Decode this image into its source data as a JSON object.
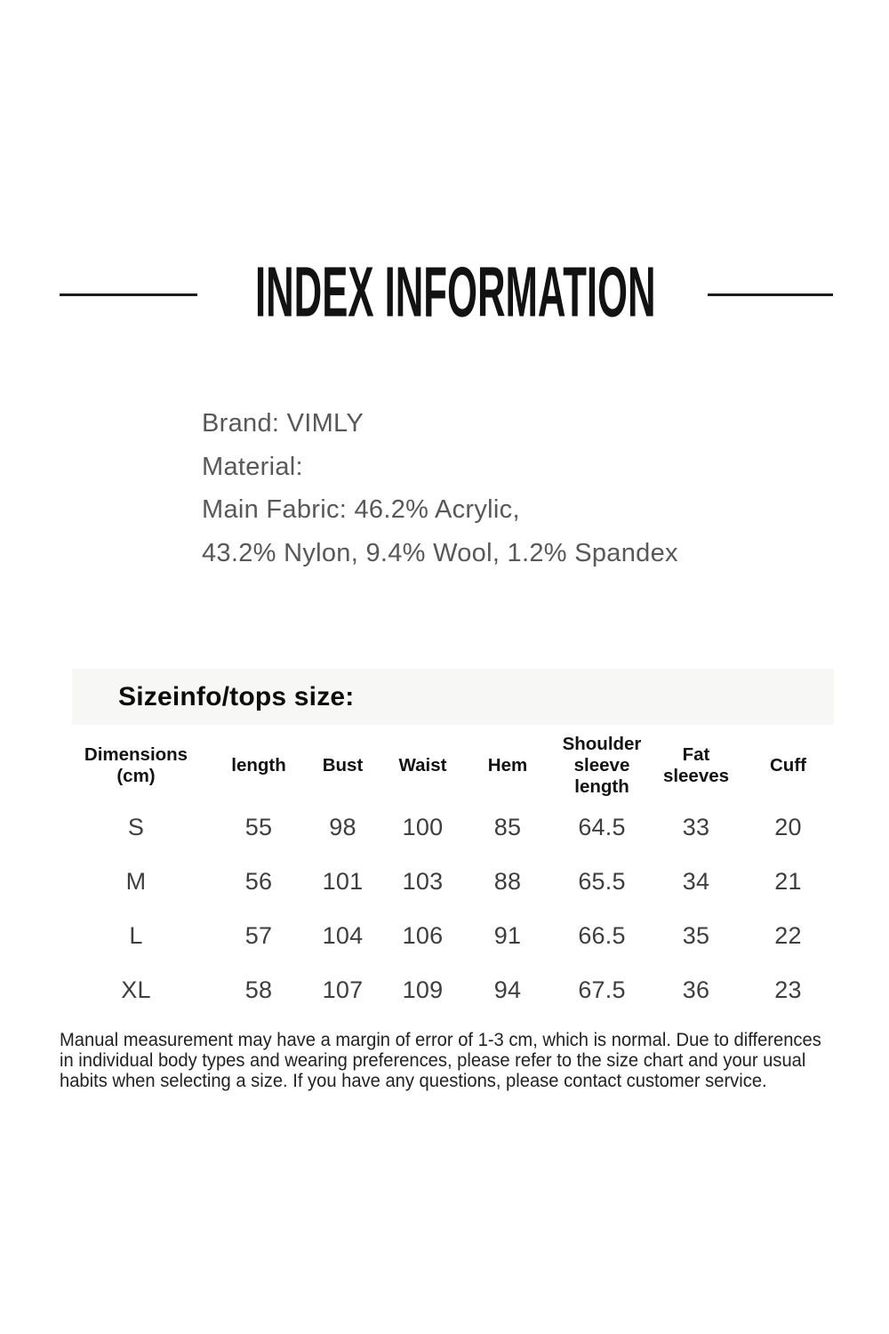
{
  "page": {
    "title": "INDEX INFORMATION"
  },
  "product": {
    "brand_line": "Brand: VIMLY",
    "material_label": "Material:",
    "material_line_1": "Main Fabric: 46.2% Acrylic,",
    "material_line_2": "43.2% Nylon, 9.4% Wool, 1.2% Spandex"
  },
  "size_section": {
    "heading": "Sizeinfo/tops size:",
    "table": {
      "headers": [
        [
          "Dimensions",
          "(cm)"
        ],
        [
          "length"
        ],
        [
          "Bust"
        ],
        [
          "Waist"
        ],
        [
          "Hem"
        ],
        [
          "Shoulder",
          "sleeve",
          "length"
        ],
        [
          "Fat",
          "sleeves"
        ],
        [
          "Cuff"
        ]
      ],
      "rows": [
        [
          "S",
          "55",
          "98",
          "100",
          "85",
          "64.5",
          "33",
          "20"
        ],
        [
          "M",
          "56",
          "101",
          "103",
          "88",
          "65.5",
          "34",
          "21"
        ],
        [
          "L",
          "57",
          "104",
          "106",
          "91",
          "66.5",
          "35",
          "22"
        ],
        [
          "XL",
          "58",
          "107",
          "109",
          "94",
          "67.5",
          "36",
          "23"
        ]
      ]
    }
  },
  "disclaimer": {
    "lines": [
      "Manual measurement may have a margin of error of 1-3 cm, which is normal. Due to differences",
      "in individual body types and wearing preferences, please refer to the size chart and your usual",
      "habits when selecting a size. If you have any questions, please contact customer service."
    ]
  },
  "colors": {
    "title_text": "#121212",
    "rule": "#1d1d1d",
    "band_background": "#f7f7f6",
    "body_text": "#58585a",
    "table_data_text": "#3e3e40",
    "disclaimer_text": "#222222"
  }
}
